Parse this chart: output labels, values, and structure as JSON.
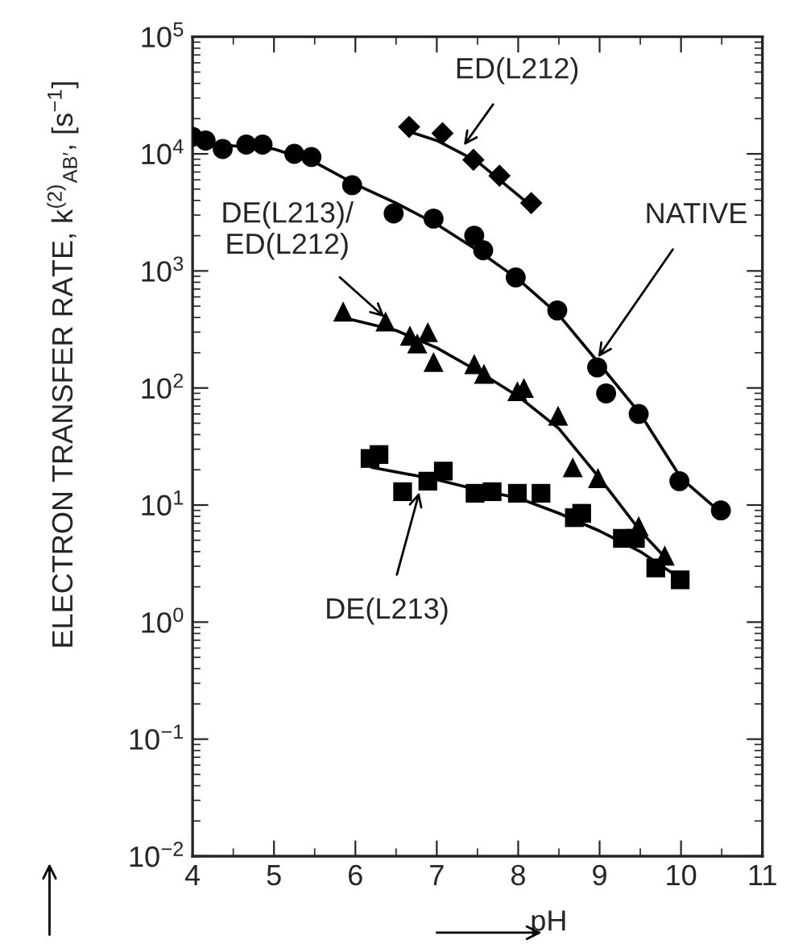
{
  "chart_data": {
    "type": "scatter",
    "xlabel": "pH",
    "ylabel": "ELECTRON TRANSFER RATE, k$^{(2)}$$_{AB′}$, [s$^{−1}$]",
    "log": "y",
    "grid": false,
    "legend": false,
    "xlim": [
      4,
      11
    ],
    "xticks": [
      4,
      5,
      6,
      7,
      8,
      9,
      10,
      11
    ],
    "ylim": [
      0.01,
      100000
    ],
    "yticks": [
      {
        "value": 0.01,
        "label": "10$^{−2}$"
      },
      {
        "value": 0.1,
        "label": "10$^{−1}$"
      },
      {
        "value": 1,
        "label": "10$^{0}$"
      },
      {
        "value": 10,
        "label": "10$^{1}$"
      },
      {
        "value": 100,
        "label": "10$^{2}$"
      },
      {
        "value": 1000,
        "label": "10$^{3}$"
      },
      {
        "value": 10000,
        "label": "10$^{4}$"
      },
      {
        "value": 100000,
        "label": "10$^{5}$"
      }
    ],
    "series": [
      {
        "marker": "circle",
        "color": "#000000",
        "x": [
          4.0,
          4.16,
          4.37,
          4.66,
          4.86,
          5.25,
          5.46,
          5.96,
          6.47,
          6.96,
          7.46,
          7.57,
          7.97,
          8.48,
          8.97,
          9.08,
          9.48,
          9.98,
          10.49
        ],
        "values": [
          14000,
          13000,
          11000,
          12000,
          12000,
          10000,
          9400,
          5400,
          3100,
          2800,
          2000,
          1500,
          880,
          460,
          150,
          90,
          60,
          16,
          9
        ]
      },
      {
        "marker": "diamond",
        "color": "#000000",
        "x": [
          6.66,
          7.07,
          7.45,
          7.77,
          8.16
        ],
        "values": [
          17000,
          15000,
          8900,
          6500,
          3800
        ]
      },
      {
        "marker": "triangle",
        "color": "#000000",
        "x": [
          5.85,
          6.37,
          6.67,
          6.89,
          6.76,
          6.96,
          7.46,
          7.58,
          7.99,
          8.07,
          8.49,
          8.67,
          8.98,
          9.48,
          9.8
        ],
        "values": [
          450,
          370,
          280,
          300,
          240,
          167,
          160,
          132,
          94,
          100,
          58,
          21,
          17,
          6.6,
          3.7
        ]
      },
      {
        "marker": "square",
        "color": "#000000",
        "x": [
          6.18,
          6.29,
          6.58,
          6.89,
          7.08,
          7.47,
          7.68,
          7.99,
          8.28,
          8.69,
          8.78,
          9.28,
          9.44,
          9.69,
          9.99
        ],
        "values": [
          25,
          27,
          13,
          16,
          19.5,
          12.6,
          13,
          12.6,
          12.6,
          7.8,
          8.5,
          5.2,
          5.2,
          2.9,
          2.3
        ]
      },
      {
        "type": "line",
        "marker": "none",
        "line_style": "solid",
        "color": "#000000",
        "x": [
          4.3,
          5.0,
          5.5,
          6.0,
          6.5,
          7.0,
          7.5,
          8.0,
          8.5,
          9.0,
          9.5,
          10.0,
          10.5
        ],
        "values": [
          12000,
          11000,
          8500,
          5500,
          3800,
          2500,
          1500,
          850,
          420,
          160,
          60,
          17,
          8.5
        ]
      },
      {
        "type": "line",
        "marker": "none",
        "line_style": "solid",
        "color": "#000000",
        "x": [
          6.6,
          7.0,
          7.5,
          8.2
        ],
        "values": [
          16000,
          13000,
          8600,
          3400
        ]
      },
      {
        "type": "line",
        "marker": "none",
        "line_style": "solid",
        "color": "#000000",
        "x": [
          5.85,
          6.5,
          7.0,
          7.5,
          8.0,
          8.5,
          9.0,
          9.5,
          9.85
        ],
        "values": [
          400,
          310,
          220,
          140,
          85,
          45,
          17,
          6,
          3.3
        ]
      },
      {
        "type": "line",
        "marker": "none",
        "line_style": "solid",
        "color": "#000000",
        "x": [
          6.2,
          7.0,
          7.5,
          8.0,
          8.5,
          9.0,
          9.5,
          9.9
        ],
        "values": [
          21,
          16.5,
          13.5,
          11.5,
          8.5,
          6,
          4,
          2.6
        ]
      }
    ],
    "annotations": [
      {
        "text": "ED(L212)",
        "x": 7.3,
        "y": 11000
      },
      {
        "text": "NATIVE",
        "x": 8.95,
        "y": 170
      },
      {
        "text": "DE(L213)/\nED(L212)",
        "x": 6.4,
        "y": 380
      },
      {
        "text": "DE(L213)",
        "x": 6.8,
        "y": 14
      }
    ]
  }
}
